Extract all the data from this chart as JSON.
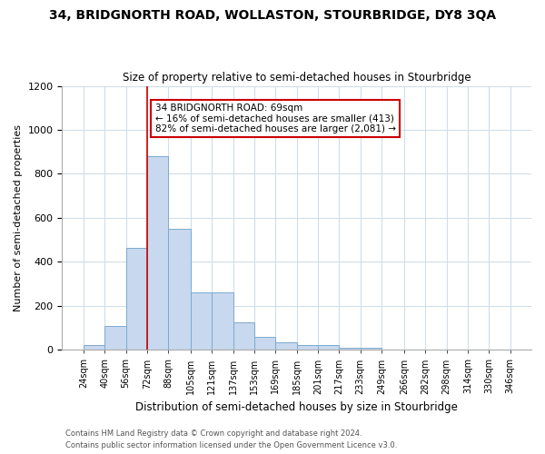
{
  "title1": "34, BRIDGNORTH ROAD, WOLLASTON, STOURBRIDGE, DY8 3QA",
  "title2": "Size of property relative to semi-detached houses in Stourbridge",
  "xlabel": "Distribution of semi-detached houses by size in Stourbridge",
  "ylabel": "Number of semi-detached properties",
  "footnote1": "Contains HM Land Registry data © Crown copyright and database right 2024.",
  "footnote2": "Contains public sector information licensed under the Open Government Licence v3.0.",
  "annotation_title": "34 BRIDGNORTH ROAD: 69sqm",
  "annotation_line1": "← 16% of semi-detached houses are smaller (413)",
  "annotation_line2": "82% of semi-detached houses are larger (2,081) →",
  "bar_left_edges": [
    24,
    40,
    56,
    72,
    88,
    105,
    121,
    137,
    153,
    169,
    185,
    201,
    217,
    233,
    249,
    266,
    282,
    298,
    314,
    330
  ],
  "bar_widths": [
    16,
    16,
    16,
    16,
    17,
    16,
    16,
    16,
    16,
    16,
    16,
    16,
    16,
    16,
    17,
    16,
    16,
    16,
    16,
    16
  ],
  "bar_heights": [
    20,
    110,
    465,
    880,
    550,
    260,
    260,
    125,
    60,
    35,
    20,
    20,
    10,
    10,
    0,
    0,
    0,
    0,
    0,
    0
  ],
  "bar_color": "#c8d8ee",
  "bar_edge_color": "#7aaad0",
  "vline_x": 72,
  "vline_color": "#cc0000",
  "annotation_box_color": "white",
  "annotation_box_edge": "#cc0000",
  "ylim": [
    0,
    1200
  ],
  "yticks": [
    0,
    200,
    400,
    600,
    800,
    1000,
    1200
  ],
  "x_labels": [
    "24sqm",
    "40sqm",
    "56sqm",
    "72sqm",
    "88sqm",
    "105sqm",
    "121sqm",
    "137sqm",
    "153sqm",
    "169sqm",
    "185sqm",
    "201sqm",
    "217sqm",
    "233sqm",
    "249sqm",
    "266sqm",
    "282sqm",
    "298sqm",
    "314sqm",
    "330sqm",
    "346sqm"
  ],
  "grid_color": "#d0dde8",
  "bg_color": "#ffffff",
  "fig_width": 6.0,
  "fig_height": 5.0,
  "dpi": 100
}
